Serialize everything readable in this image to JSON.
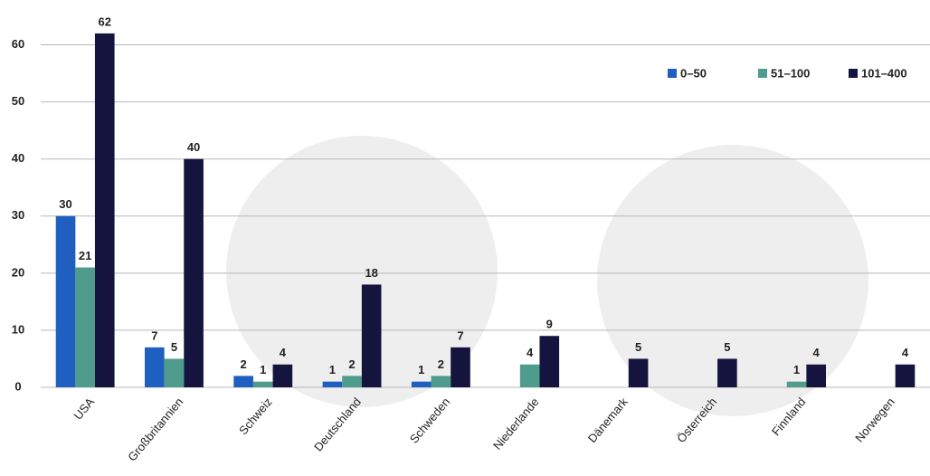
{
  "chart_data": {
    "type": "bar",
    "categories": [
      "USA",
      "Großbritannien",
      "Schweiz",
      "Deutschland",
      "Schweden",
      "Niederlande",
      "Dänemark",
      "Österreich",
      "Finnland",
      "Norwegen"
    ],
    "series": [
      {
        "name": "0–50",
        "color": "#1f5fbf",
        "values": [
          30,
          7,
          2,
          1,
          1,
          null,
          null,
          null,
          null,
          null
        ]
      },
      {
        "name": "51–100",
        "color": "#4f9c8c",
        "values": [
          21,
          5,
          1,
          2,
          2,
          4,
          null,
          null,
          1,
          null
        ]
      },
      {
        "name": "101–400",
        "color": "#14143f",
        "values": [
          62,
          40,
          4,
          18,
          7,
          9,
          5,
          5,
          4,
          4
        ]
      }
    ],
    "ylim": [
      0,
      65
    ],
    "yticks": [
      0,
      10,
      20,
      30,
      40,
      50,
      60
    ],
    "grid": true,
    "legend": "top-right"
  }
}
